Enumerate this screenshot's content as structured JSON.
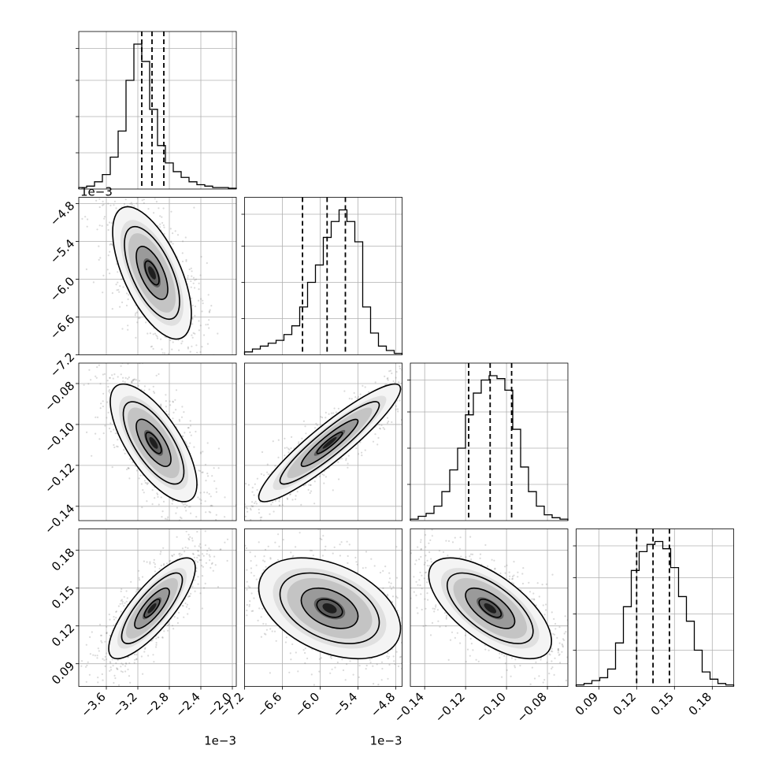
{
  "chart_data": {
    "type": "corner",
    "description_labels": [],
    "grid": true,
    "parameters": [
      {
        "index": 0,
        "range": [
          -3.95,
          -1.95
        ],
        "ticks": [
          -3.6,
          -3.2,
          -2.8,
          -2.4,
          -2.0
        ],
        "tick_labels": [
          "−3.6",
          "−3.2",
          "−2.8",
          "−2.4",
          "−2.0"
        ],
        "offset_label": "1e−3",
        "quantiles": [
          -3.15,
          -3.02,
          -2.87
        ],
        "histogram": [
          0.01,
          0.02,
          0.05,
          0.1,
          0.22,
          0.4,
          0.75,
          1.0,
          0.88,
          0.55,
          0.3,
          0.18,
          0.12,
          0.08,
          0.05,
          0.03,
          0.02,
          0.01,
          0.01,
          0.005
        ]
      },
      {
        "index": 1,
        "range": [
          -7.2,
          -4.7
        ],
        "ticks": [
          -7.2,
          -6.6,
          -6.0,
          -5.4,
          -4.8
        ],
        "tick_labels": [
          "−7.2",
          "−6.6",
          "−6.0",
          "−5.4",
          "−4.8"
        ],
        "offset_label": "1e−3",
        "quantiles": [
          -6.28,
          -5.89,
          -5.6
        ],
        "histogram": [
          0.02,
          0.04,
          0.06,
          0.08,
          0.1,
          0.14,
          0.2,
          0.33,
          0.5,
          0.62,
          0.81,
          0.92,
          1.0,
          0.92,
          0.78,
          0.33,
          0.15,
          0.06,
          0.03,
          0.01
        ]
      },
      {
        "index": 2,
        "range": [
          -0.147,
          -0.07
        ],
        "ticks": [
          -0.14,
          -0.12,
          -0.1,
          -0.08
        ],
        "tick_labels": [
          "−0.14",
          "−0.12",
          "−0.10",
          "−0.08"
        ],
        "offset_label": "",
        "quantiles": [
          -0.1185,
          -0.108,
          -0.0975
        ],
        "histogram": [
          0.01,
          0.03,
          0.05,
          0.1,
          0.2,
          0.35,
          0.5,
          0.73,
          0.88,
          0.97,
          1.0,
          0.98,
          0.9,
          0.63,
          0.37,
          0.2,
          0.1,
          0.04,
          0.02,
          0.01
        ]
      },
      {
        "index": 3,
        "range": [
          0.072,
          0.197
        ],
        "ticks": [
          0.09,
          0.12,
          0.15,
          0.18
        ],
        "tick_labels": [
          "0.09",
          "0.12",
          "0.15",
          "0.18"
        ],
        "offset_label": "",
        "quantiles": [
          0.12,
          0.133,
          0.146
        ],
        "histogram": [
          0.01,
          0.02,
          0.04,
          0.06,
          0.12,
          0.3,
          0.55,
          0.8,
          0.93,
          0.98,
          1.0,
          0.95,
          0.82,
          0.62,
          0.45,
          0.25,
          0.1,
          0.05,
          0.02,
          0.01
        ]
      }
    ],
    "left_axes": {
      "row1": {
        "ticks": [
          -4.8,
          -5.4,
          -6.0,
          -6.6,
          -7.2
        ],
        "tick_labels": [
          "−4.8",
          "−5.4",
          "−6.0",
          "−6.6",
          "−7.2"
        ]
      },
      "row2": {
        "ticks": [
          -0.08,
          -0.1,
          -0.12,
          -0.14
        ],
        "tick_labels": [
          "−0.08",
          "−0.10",
          "−0.12",
          "−0.14"
        ]
      },
      "row3": {
        "ticks": [
          0.18,
          0.15,
          0.12,
          0.09
        ],
        "tick_labels": [
          "0.18",
          "0.15",
          "0.12",
          "0.09"
        ]
      }
    },
    "row1_offset_label": "1e−3",
    "bottom_offset_labels": [
      "1e−3",
      "1e−3",
      "",
      ""
    ],
    "pairs": [
      {
        "x": 0,
        "y": 1,
        "center": [
          -3.02,
          -5.9
        ],
        "sd": [
          0.2,
          0.42
        ],
        "corr": -0.62
      },
      {
        "x": 0,
        "y": 2,
        "center": [
          -3.0,
          -0.109
        ],
        "sd": [
          0.22,
          0.0115
        ],
        "corr": -0.7
      },
      {
        "x": 1,
        "y": 2,
        "center": [
          -5.85,
          -0.109
        ],
        "sd": [
          0.45,
          0.0115
        ],
        "corr": 0.92
      },
      {
        "x": 0,
        "y": 3,
        "center": [
          -3.02,
          0.134
        ],
        "sd": [
          0.22,
          0.016
        ],
        "corr": 0.8
      },
      {
        "x": 1,
        "y": 3,
        "center": [
          -5.85,
          0.134
        ],
        "sd": [
          0.45,
          0.016
        ],
        "corr": -0.4
      },
      {
        "x": 2,
        "y": 3,
        "center": [
          -0.108,
          0.134
        ],
        "sd": [
          0.012,
          0.016
        ],
        "corr": -0.65
      }
    ]
  }
}
